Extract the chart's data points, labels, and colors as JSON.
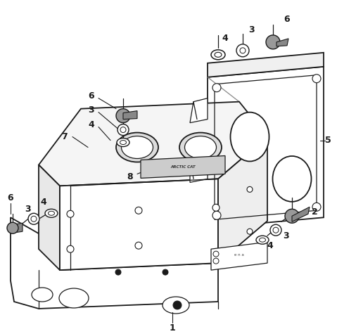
{
  "bg_color": "#ffffff",
  "fig_width": 4.79,
  "fig_height": 4.75,
  "dpi": 100,
  "line_color": "#1a1a1a",
  "label_color": "#1a1a1a"
}
